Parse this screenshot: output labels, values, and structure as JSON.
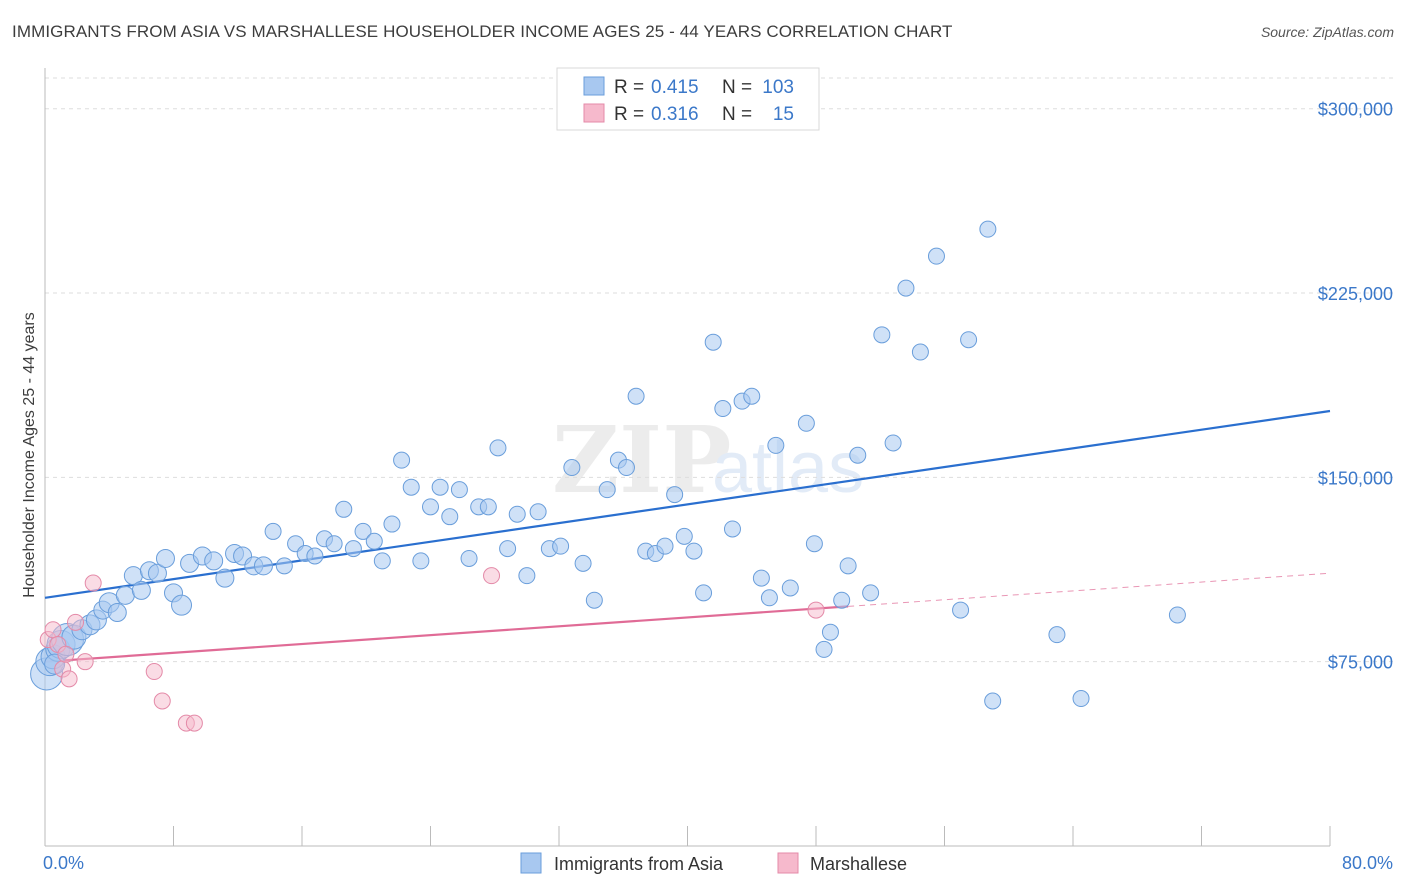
{
  "title": "IMMIGRANTS FROM ASIA VS MARSHALLESE HOUSEHOLDER INCOME AGES 25 - 44 YEARS CORRELATION CHART",
  "source": "Source: ZipAtlas.com",
  "watermark": {
    "zip": "ZIP",
    "atlas": "atlas"
  },
  "colors": {
    "blue_fill": "#a8c8f0",
    "blue_stroke": "#6a9edb",
    "blue_line": "#2a6fcf",
    "pink_fill": "#f6b9cc",
    "pink_stroke": "#e48aa8",
    "pink_line": "#e06b96",
    "tick_text": "#3b78c9",
    "grid": "#dddddd"
  },
  "legend": {
    "rows": [
      {
        "r_label": "R =",
        "r_value": "0.415",
        "n_label": "N =",
        "n_value": "103"
      },
      {
        "r_label": "R =",
        "r_value": "0.316",
        "n_label": "N =",
        "n_value": "15"
      }
    ]
  },
  "chart_data": {
    "type": "scatter",
    "title": "IMMIGRANTS FROM ASIA VS MARSHALLESE HOUSEHOLDER INCOME AGES 25 - 44 YEARS CORRELATION CHART",
    "xlabel": "",
    "ylabel": "Householder Income Ages 25 - 44 years",
    "xlim": [
      0,
      80
    ],
    "ylim": [
      0,
      312500
    ],
    "x_tick_labels": [
      "0.0%",
      "80.0%"
    ],
    "y_ticks": [
      75000,
      150000,
      225000,
      300000
    ],
    "y_tick_labels": [
      "$75,000",
      "$150,000",
      "$225,000",
      "$300,000"
    ],
    "grid": true,
    "series": [
      {
        "name": "Immigrants from Asia",
        "r": 0.415,
        "n": 103,
        "trend": {
          "x": [
            0,
            80
          ],
          "y": [
            101000,
            177000
          ],
          "dashed_from": null
        },
        "points": [
          [
            0.1,
            70000,
            16
          ],
          [
            0.3,
            75000,
            14
          ],
          [
            0.5,
            77000,
            12
          ],
          [
            0.8,
            80000,
            12
          ],
          [
            1.0,
            82000,
            14
          ],
          [
            1.4,
            84000,
            16
          ],
          [
            1.8,
            85000,
            12
          ],
          [
            2.3,
            88000,
            10
          ],
          [
            2.8,
            90000,
            10
          ],
          [
            3.2,
            92000,
            10
          ],
          [
            3.6,
            96000,
            9
          ],
          [
            4.0,
            99000,
            10
          ],
          [
            4.5,
            95000,
            9
          ],
          [
            5.0,
            102000,
            9
          ],
          [
            5.5,
            110000,
            9
          ],
          [
            6.0,
            104000,
            9
          ],
          [
            6.5,
            112000,
            9
          ],
          [
            7.0,
            111000,
            9
          ],
          [
            7.5,
            117000,
            9
          ],
          [
            8.0,
            103000,
            9
          ],
          [
            8.5,
            98000,
            10
          ],
          [
            9.0,
            115000,
            9
          ],
          [
            9.8,
            118000,
            9
          ],
          [
            10.5,
            116000,
            9
          ],
          [
            11.2,
            109000,
            9
          ],
          [
            11.8,
            119000,
            9
          ],
          [
            12.3,
            118000,
            9
          ],
          [
            13.0,
            114000,
            9
          ],
          [
            13.6,
            114000,
            9
          ],
          [
            14.2,
            128000,
            8
          ],
          [
            14.9,
            114000,
            8
          ],
          [
            15.6,
            123000,
            8
          ],
          [
            16.2,
            119000,
            8
          ],
          [
            16.8,
            118000,
            8
          ],
          [
            17.4,
            125000,
            8
          ],
          [
            18.0,
            123000,
            8
          ],
          [
            18.6,
            137000,
            8
          ],
          [
            19.2,
            121000,
            8
          ],
          [
            19.8,
            128000,
            8
          ],
          [
            20.5,
            124000,
            8
          ],
          [
            21.0,
            116000,
            8
          ],
          [
            21.6,
            131000,
            8
          ],
          [
            22.2,
            157000,
            8
          ],
          [
            22.8,
            146000,
            8
          ],
          [
            23.4,
            116000,
            8
          ],
          [
            24.0,
            138000,
            8
          ],
          [
            24.6,
            146000,
            8
          ],
          [
            25.2,
            134000,
            8
          ],
          [
            25.8,
            145000,
            8
          ],
          [
            26.4,
            117000,
            8
          ],
          [
            27.0,
            138000,
            8
          ],
          [
            27.6,
            138000,
            8
          ],
          [
            28.2,
            162000,
            8
          ],
          [
            28.8,
            121000,
            8
          ],
          [
            29.4,
            135000,
            8
          ],
          [
            30.0,
            110000,
            8
          ],
          [
            30.7,
            136000,
            8
          ],
          [
            31.4,
            121000,
            8
          ],
          [
            32.1,
            122000,
            8
          ],
          [
            32.8,
            154000,
            8
          ],
          [
            33.5,
            115000,
            8
          ],
          [
            34.2,
            100000,
            8
          ],
          [
            35.0,
            145000,
            8
          ],
          [
            35.7,
            157000,
            8
          ],
          [
            36.2,
            154000,
            8
          ],
          [
            36.8,
            183000,
            8
          ],
          [
            37.4,
            120000,
            8
          ],
          [
            38.0,
            119000,
            8
          ],
          [
            38.6,
            122000,
            8
          ],
          [
            39.2,
            143000,
            8
          ],
          [
            39.8,
            126000,
            8
          ],
          [
            40.4,
            120000,
            8
          ],
          [
            41.0,
            103000,
            8
          ],
          [
            41.6,
            205000,
            8
          ],
          [
            42.2,
            178000,
            8
          ],
          [
            42.8,
            129000,
            8
          ],
          [
            43.4,
            181000,
            8
          ],
          [
            44.0,
            183000,
            8
          ],
          [
            44.6,
            109000,
            8
          ],
          [
            45.1,
            101000,
            8
          ],
          [
            45.5,
            163000,
            8
          ],
          [
            46.4,
            105000,
            8
          ],
          [
            47.4,
            172000,
            8
          ],
          [
            47.9,
            123000,
            8
          ],
          [
            48.5,
            80000,
            8
          ],
          [
            48.9,
            87000,
            8
          ],
          [
            49.6,
            100000,
            8
          ],
          [
            50.0,
            114000,
            8
          ],
          [
            50.6,
            159000,
            8
          ],
          [
            51.4,
            103000,
            8
          ],
          [
            52.1,
            208000,
            8
          ],
          [
            52.8,
            164000,
            8
          ],
          [
            53.6,
            227000,
            8
          ],
          [
            54.5,
            201000,
            8
          ],
          [
            55.5,
            240000,
            8
          ],
          [
            57.0,
            96000,
            8
          ],
          [
            57.5,
            206000,
            8
          ],
          [
            58.7,
            251000,
            8
          ],
          [
            59.0,
            59000,
            8
          ],
          [
            63.0,
            86000,
            8
          ],
          [
            64.5,
            60000,
            8
          ],
          [
            70.5,
            94000,
            8
          ],
          [
            0.6,
            74000,
            10
          ]
        ]
      },
      {
        "name": "Marshallese",
        "r": 0.316,
        "n": 15,
        "trend": {
          "x": [
            0,
            80
          ],
          "y": [
            75000,
            111000
          ],
          "dashed_from": 50
        },
        "points": [
          [
            0.2,
            84000
          ],
          [
            0.5,
            88000
          ],
          [
            0.8,
            82000
          ],
          [
            1.1,
            72000
          ],
          [
            1.3,
            78000
          ],
          [
            1.5,
            68000
          ],
          [
            1.9,
            91000
          ],
          [
            2.5,
            75000
          ],
          [
            3.0,
            107000
          ],
          [
            6.8,
            71000
          ],
          [
            7.3,
            59000
          ],
          [
            8.8,
            50000
          ],
          [
            9.3,
            50000
          ],
          [
            27.8,
            110000
          ],
          [
            48.0,
            96000
          ]
        ]
      }
    ]
  },
  "bottom_legend": [
    "Immigrants from Asia",
    "Marshallese"
  ]
}
